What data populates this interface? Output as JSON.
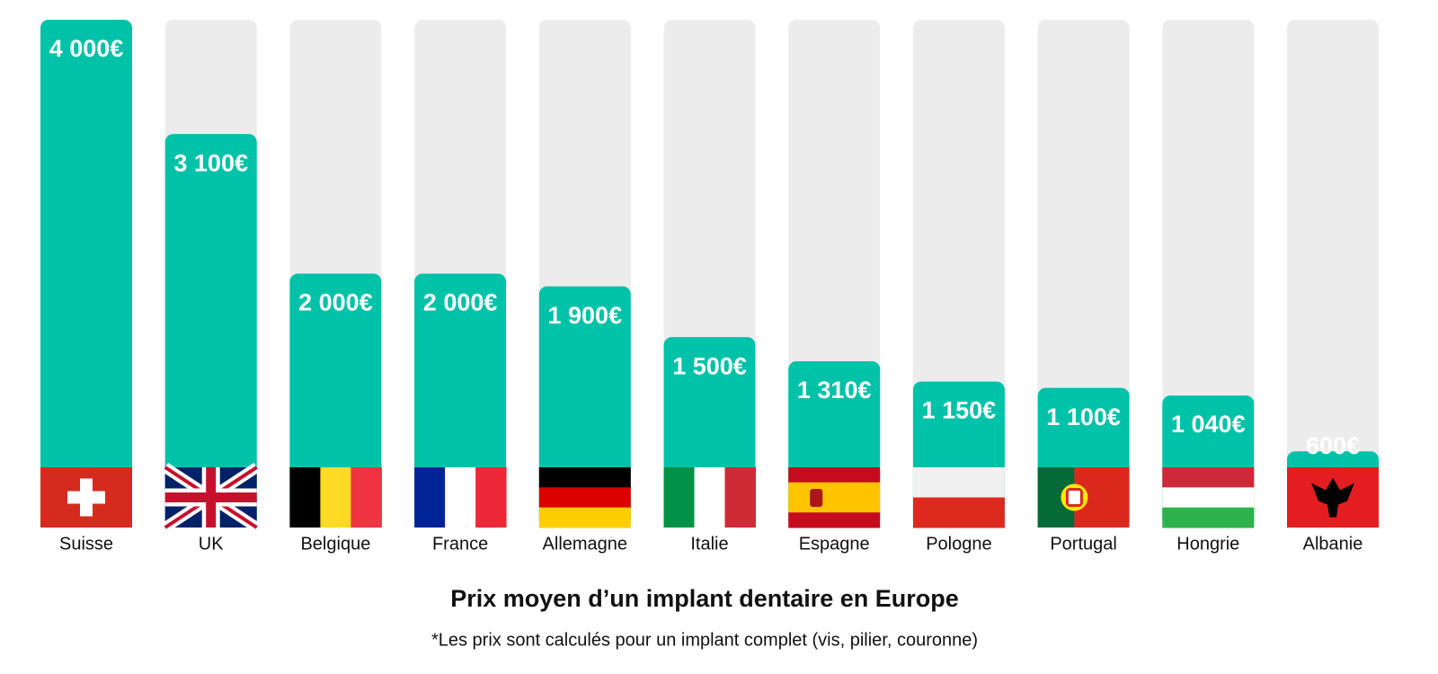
{
  "chart_data": {
    "type": "bar",
    "title": "Prix moyen d’un implant dentaire en Europe",
    "subtitle": "*Les prix sont calculés pour un implant complet (vis, pilier, couronne)",
    "categories": [
      "Suisse",
      "UK",
      "Belgique",
      "France",
      "Allemagne",
      "Italie",
      "Espagne",
      "Pologne",
      "Portugal",
      "Hongrie",
      "Albanie"
    ],
    "values": [
      4000,
      3100,
      2000,
      2000,
      1900,
      1500,
      1310,
      1150,
      1100,
      1040,
      600
    ],
    "value_labels": [
      "4 000€",
      "3 100€",
      "2 000€",
      "2 000€",
      "1 900€",
      "1 500€",
      "1 310€",
      "1 150€",
      "1 100€",
      "1 040€",
      "600€"
    ],
    "color": "#00c2a8",
    "ylim": [
      0,
      4000
    ]
  }
}
